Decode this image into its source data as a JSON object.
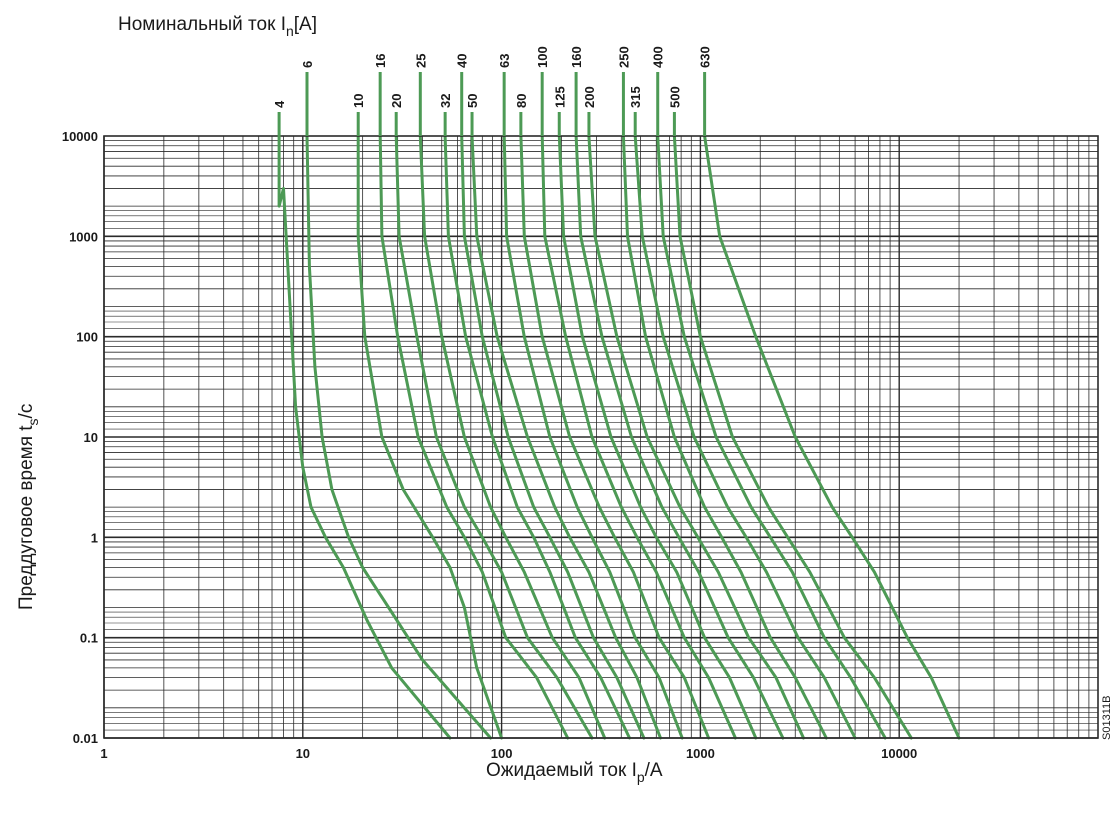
{
  "chart_data": {
    "type": "line",
    "x_scale": "log",
    "y_scale": "log",
    "xlim": [
      1,
      100000
    ],
    "ylim": [
      0.01,
      10000
    ],
    "grid": true,
    "title": {
      "main": "Номинальный ток I",
      "sub": "n",
      "suffix": "[A]"
    },
    "xlabel": {
      "main": "Ожидаемый ток I",
      "sub": "p",
      "suffix": "/A"
    },
    "ylabel": {
      "main": "Преддуговое время t",
      "sub": "s",
      "suffix": "/c"
    },
    "x_ticks": [
      {
        "value": 1,
        "label": "1"
      },
      {
        "value": 10,
        "label": "10"
      },
      {
        "value": 100,
        "label": "100"
      },
      {
        "value": 1000,
        "label": "1000"
      },
      {
        "value": 10000,
        "label": "10000"
      }
    ],
    "y_ticks": [
      {
        "value": 10000,
        "label": "10000"
      },
      {
        "value": 1000,
        "label": "1000"
      },
      {
        "value": 100,
        "label": "100"
      },
      {
        "value": 10,
        "label": "10"
      },
      {
        "value": 1,
        "label": "1"
      },
      {
        "value": 0.1,
        "label": "0.1"
      },
      {
        "value": 0.01,
        "label": "0.01"
      }
    ],
    "series_color": "#4d9a55",
    "grid_color": "#2a2a2a",
    "code": "S01311B",
    "series": [
      {
        "name": "4",
        "points": [
          [
            7.6,
            2000
          ],
          [
            8.0,
            3000
          ],
          [
            9.2,
            20
          ],
          [
            10.0,
            5
          ],
          [
            11.0,
            2
          ],
          [
            13.0,
            1
          ],
          [
            16.0,
            0.5
          ],
          [
            21.0,
            0.15
          ],
          [
            28.0,
            0.05
          ],
          [
            55.0,
            0.01
          ]
        ]
      },
      {
        "name": "6",
        "points": [
          [
            10.5,
            10000
          ],
          [
            10.8,
            500
          ],
          [
            11.5,
            50
          ],
          [
            12.5,
            10
          ],
          [
            14.0,
            3
          ],
          [
            17.0,
            1
          ],
          [
            20.0,
            0.5
          ],
          [
            27.0,
            0.2
          ],
          [
            40.0,
            0.06
          ],
          [
            88.0,
            0.01
          ]
        ]
      },
      {
        "name": "10",
        "points": [
          [
            19.0,
            10000
          ],
          [
            19.0,
            1000
          ],
          [
            20.5,
            100
          ],
          [
            25.0,
            10
          ],
          [
            32.0,
            3
          ],
          [
            45.0,
            1
          ],
          [
            55.0,
            0.5
          ],
          [
            65.0,
            0.2
          ],
          [
            75.0,
            0.05
          ],
          [
            100.0,
            0.01
          ]
        ]
      },
      {
        "name": "16",
        "points": [
          [
            24.5,
            10000
          ],
          [
            25.0,
            1000
          ],
          [
            30.0,
            100
          ],
          [
            38.0,
            10
          ],
          [
            53.0,
            2
          ],
          [
            65.0,
            1
          ],
          [
            80.0,
            0.45
          ],
          [
            105.0,
            0.1
          ],
          [
            150.0,
            0.04
          ],
          [
            215.0,
            0.01
          ]
        ]
      },
      {
        "name": "20",
        "points": [
          [
            29.5,
            10000
          ],
          [
            30.5,
            1000
          ],
          [
            37.5,
            100
          ],
          [
            47.0,
            10
          ],
          [
            65.0,
            2
          ],
          [
            80.0,
            1
          ],
          [
            100.0,
            0.45
          ],
          [
            135.0,
            0.1
          ],
          [
            190.0,
            0.04
          ],
          [
            285.0,
            0.01
          ]
        ]
      },
      {
        "name": "25",
        "points": [
          [
            39.0,
            10000
          ],
          [
            41.0,
            1000
          ],
          [
            50.0,
            100
          ],
          [
            65.0,
            10
          ],
          [
            88.0,
            2
          ],
          [
            105.0,
            1
          ],
          [
            130.0,
            0.45
          ],
          [
            180.0,
            0.1
          ],
          [
            245.0,
            0.04
          ],
          [
            330.0,
            0.01
          ]
        ]
      },
      {
        "name": "32",
        "points": [
          [
            52.0,
            10000
          ],
          [
            54.0,
            1000
          ],
          [
            66.0,
            100
          ],
          [
            90.0,
            10
          ],
          [
            120.0,
            2
          ],
          [
            145.0,
            1
          ],
          [
            175.0,
            0.45
          ],
          [
            235.0,
            0.1
          ],
          [
            315.0,
            0.04
          ],
          [
            440.0,
            0.01
          ]
        ]
      },
      {
        "name": "40",
        "points": [
          [
            63.0,
            10000
          ],
          [
            65.0,
            1000
          ],
          [
            80.0,
            100
          ],
          [
            108.0,
            10
          ],
          [
            145.0,
            2
          ],
          [
            175.0,
            1
          ],
          [
            215.0,
            0.45
          ],
          [
            290.0,
            0.1
          ],
          [
            380.0,
            0.04
          ],
          [
            520.0,
            0.01
          ]
        ]
      },
      {
        "name": "50",
        "points": [
          [
            71.0,
            10000
          ],
          [
            75.0,
            1000
          ],
          [
            95.0,
            100
          ],
          [
            135.0,
            10
          ],
          [
            185.0,
            2
          ],
          [
            220.0,
            1
          ],
          [
            275.0,
            0.45
          ],
          [
            375.0,
            0.1
          ],
          [
            480.0,
            0.04
          ],
          [
            630.0,
            0.01
          ]
        ]
      },
      {
        "name": "63",
        "points": [
          [
            103.0,
            10000
          ],
          [
            106.0,
            1000
          ],
          [
            130.0,
            100
          ],
          [
            175.0,
            10
          ],
          [
            240.0,
            2
          ],
          [
            285.0,
            1
          ],
          [
            350.0,
            0.45
          ],
          [
            470.0,
            0.1
          ],
          [
            620.0,
            0.04
          ],
          [
            810.0,
            0.01
          ]
        ]
      },
      {
        "name": "80",
        "points": [
          [
            125.0,
            10000
          ],
          [
            130.0,
            1000
          ],
          [
            160.0,
            100
          ],
          [
            220.0,
            10
          ],
          [
            310.0,
            2
          ],
          [
            370.0,
            1
          ],
          [
            460.0,
            0.45
          ],
          [
            620.0,
            0.1
          ],
          [
            830.0,
            0.04
          ],
          [
            1100.0,
            0.01
          ]
        ]
      },
      {
        "name": "100",
        "points": [
          [
            160.0,
            10000
          ],
          [
            165.0,
            1000
          ],
          [
            210.0,
            100
          ],
          [
            285.0,
            10
          ],
          [
            400.0,
            2
          ],
          [
            480.0,
            1
          ],
          [
            600.0,
            0.45
          ],
          [
            830.0,
            0.1
          ],
          [
            1100.0,
            0.04
          ],
          [
            1500.0,
            0.01
          ]
        ]
      },
      {
        "name": "125",
        "points": [
          [
            195.0,
            10000
          ],
          [
            205.0,
            1000
          ],
          [
            255.0,
            100
          ],
          [
            355.0,
            10
          ],
          [
            500.0,
            2
          ],
          [
            600.0,
            1
          ],
          [
            760.0,
            0.45
          ],
          [
            1050.0,
            0.1
          ],
          [
            1400.0,
            0.04
          ],
          [
            1900.0,
            0.01
          ]
        ]
      },
      {
        "name": "160",
        "points": [
          [
            237.0,
            10000
          ],
          [
            250.0,
            1000
          ],
          [
            320.0,
            100
          ],
          [
            450.0,
            10
          ],
          [
            640.0,
            2
          ],
          [
            780.0,
            1
          ],
          [
            980.0,
            0.45
          ],
          [
            1380.0,
            0.1
          ],
          [
            1850.0,
            0.04
          ],
          [
            2600.0,
            0.01
          ]
        ]
      },
      {
        "name": "200",
        "points": [
          [
            275.0,
            10000
          ],
          [
            295.0,
            1000
          ],
          [
            380.0,
            100
          ],
          [
            540.0,
            10
          ],
          [
            790.0,
            2
          ],
          [
            970.0,
            1
          ],
          [
            1230.0,
            0.45
          ],
          [
            1750.0,
            0.1
          ],
          [
            2400.0,
            0.04
          ],
          [
            3300.0,
            0.01
          ]
        ]
      },
      {
        "name": "250",
        "points": [
          [
            410.0,
            10000
          ],
          [
            430.0,
            1000
          ],
          [
            530.0,
            100
          ],
          [
            740.0,
            10
          ],
          [
            1050.0,
            2
          ],
          [
            1280.0,
            1
          ],
          [
            1600.0,
            0.45
          ],
          [
            2250.0,
            0.1
          ],
          [
            3000.0,
            0.04
          ],
          [
            4300.0,
            0.01
          ]
        ]
      },
      {
        "name": "315",
        "points": [
          [
            470.0,
            10000
          ],
          [
            510.0,
            1000
          ],
          [
            650.0,
            100
          ],
          [
            930.0,
            10
          ],
          [
            1370.0,
            2
          ],
          [
            1700.0,
            1
          ],
          [
            2150.0,
            0.45
          ],
          [
            3100.0,
            0.1
          ],
          [
            4200.0,
            0.04
          ],
          [
            6000.0,
            0.01
          ]
        ]
      },
      {
        "name": "400",
        "points": [
          [
            610.0,
            10000
          ],
          [
            650.0,
            1000
          ],
          [
            830.0,
            100
          ],
          [
            1200.0,
            10
          ],
          [
            1800.0,
            2
          ],
          [
            2250.0,
            1
          ],
          [
            2900.0,
            0.45
          ],
          [
            4200.0,
            0.1
          ],
          [
            5700.0,
            0.04
          ],
          [
            8500.0,
            0.01
          ]
        ]
      },
      {
        "name": "500",
        "points": [
          [
            740.0,
            10000
          ],
          [
            790.0,
            1000
          ],
          [
            1000.0,
            100
          ],
          [
            1450.0,
            10
          ],
          [
            2200.0,
            2
          ],
          [
            2750.0,
            1
          ],
          [
            3550.0,
            0.45
          ],
          [
            5300.0,
            0.1
          ],
          [
            7500.0,
            0.04
          ],
          [
            11500.0,
            0.01
          ]
        ]
      },
      {
        "name": "630",
        "points": [
          [
            1050.0,
            10000
          ],
          [
            1250.0,
            1000
          ],
          [
            1900.0,
            100
          ],
          [
            3000.0,
            10
          ],
          [
            4600.0,
            2
          ],
          [
            5800.0,
            1
          ],
          [
            7500.0,
            0.45
          ],
          [
            11000.0,
            0.1
          ],
          [
            14500.0,
            0.04
          ],
          [
            20000.0,
            0.01
          ]
        ]
      }
    ]
  }
}
